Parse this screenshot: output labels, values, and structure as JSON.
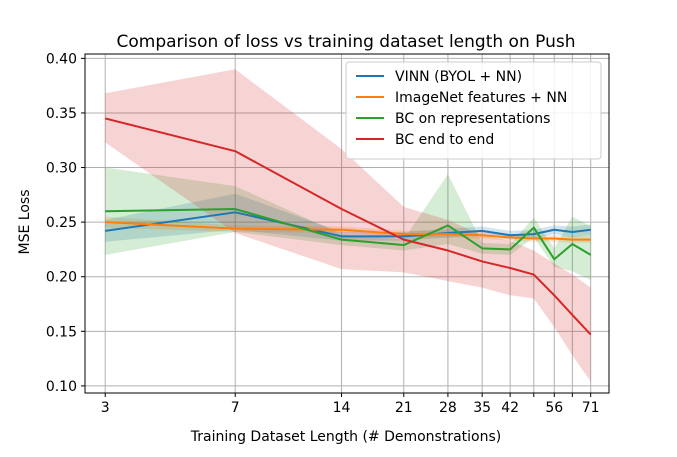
{
  "chart_data": {
    "type": "line",
    "title": "Comparison of loss vs training dataset length on Push",
    "xlabel": "Training Dataset Length (# Demonstrations)",
    "ylabel": "MSE Loss",
    "xscale": "log",
    "xticks": [
      3,
      7,
      14,
      21,
      28,
      35,
      42,
      56,
      71
    ],
    "xticks_unlabeled": [
      49,
      63
    ],
    "xlim": [
      2.63,
      80
    ],
    "ylim": [
      0.0935,
      0.404
    ],
    "yticks": [
      0.1,
      0.15,
      0.2,
      0.25,
      0.3,
      0.35,
      0.4
    ],
    "grid": true,
    "legend_position": "upper right",
    "x": [
      3,
      7,
      14,
      21,
      28,
      35,
      42,
      49,
      56,
      63,
      71
    ],
    "series": [
      {
        "name": "VINN (BYOL + NN)",
        "color": "#1f77b4",
        "values": [
          0.242,
          0.259,
          0.237,
          0.237,
          0.24,
          0.242,
          0.238,
          0.239,
          0.243,
          0.241,
          0.243
        ],
        "lower": [
          0.232,
          0.243,
          0.233,
          0.233,
          0.236,
          0.238,
          0.234,
          0.235,
          0.239,
          0.236,
          0.238
        ],
        "upper": [
          0.252,
          0.276,
          0.241,
          0.241,
          0.244,
          0.246,
          0.242,
          0.243,
          0.247,
          0.246,
          0.248
        ]
      },
      {
        "name": "ImageNet features + NN",
        "color": "#ff7f0e",
        "values": [
          0.25,
          0.244,
          0.243,
          0.239,
          0.239,
          0.238,
          0.236,
          0.235,
          0.235,
          0.234,
          0.234
        ],
        "lower": [
          0.245,
          0.241,
          0.24,
          0.236,
          0.236,
          0.235,
          0.233,
          0.232,
          0.232,
          0.231,
          0.231
        ],
        "upper": [
          0.255,
          0.247,
          0.246,
          0.242,
          0.242,
          0.241,
          0.239,
          0.238,
          0.238,
          0.237,
          0.237
        ]
      },
      {
        "name": "BC on representations",
        "color": "#2ca02c",
        "values": [
          0.26,
          0.262,
          0.234,
          0.229,
          0.247,
          0.226,
          0.225,
          0.245,
          0.216,
          0.23,
          0.22
        ],
        "lower": [
          0.22,
          0.241,
          0.229,
          0.224,
          0.23,
          0.221,
          0.22,
          0.236,
          0.209,
          0.205,
          0.197
        ],
        "upper": [
          0.3,
          0.283,
          0.239,
          0.234,
          0.294,
          0.231,
          0.23,
          0.254,
          0.226,
          0.255,
          0.246
        ]
      },
      {
        "name": "BC end to end",
        "color": "#d62728",
        "values": [
          0.345,
          0.315,
          0.262,
          0.234,
          0.224,
          0.214,
          0.208,
          0.202,
          0.183,
          0.165,
          0.147
        ],
        "lower": [
          0.323,
          0.24,
          0.207,
          0.204,
          0.196,
          0.19,
          0.183,
          0.18,
          0.154,
          0.128,
          0.104
        ],
        "upper": [
          0.368,
          0.39,
          0.317,
          0.264,
          0.252,
          0.238,
          0.233,
          0.224,
          0.212,
          0.202,
          0.19
        ]
      }
    ]
  }
}
